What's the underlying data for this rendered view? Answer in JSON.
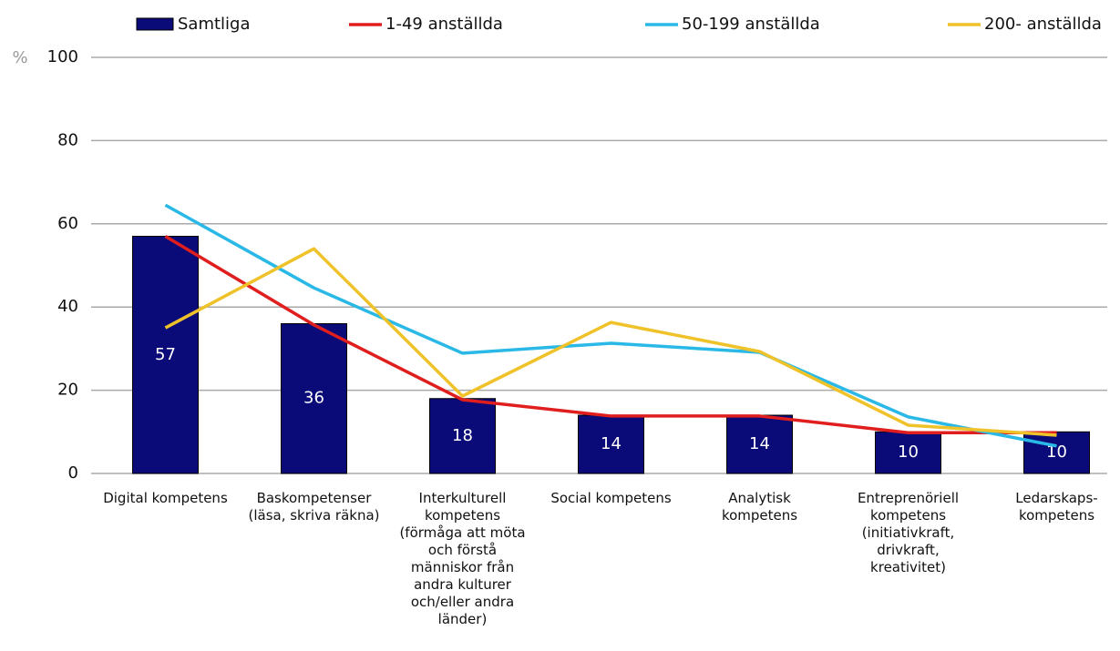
{
  "chart_data": {
    "type": "bar",
    "y_axis_label": "%",
    "categories": [
      "Digital kompetens",
      "Baskompetenser (läsa, skriva räkna)",
      "Interkulturell kompetens (förmåga att möta och förstå människor från andra kulturer och/eller andra länder)",
      "Social kompetens",
      "Analytisk kompetens",
      "Entreprenöriell kompetens (initiativkraft, drivkraft, kreativitet)",
      "Ledarskaps-kompetens"
    ],
    "series": [
      {
        "name": "Samtliga",
        "type": "bar",
        "color": "#0a0a78",
        "values": [
          57,
          36,
          18,
          14,
          14,
          10,
          10
        ]
      },
      {
        "name": "1-49 anställda",
        "type": "line",
        "color": "#e01e1e",
        "values": [
          57,
          35.7,
          17.7,
          13.8,
          13.8,
          9.8,
          9.8
        ]
      },
      {
        "name": "50-199 anställda",
        "type": "line",
        "color": "#2ab9e6",
        "values": [
          64.5,
          44.6,
          28.9,
          31.3,
          29.1,
          13.6,
          6.6
        ]
      },
      {
        "name": "200- anställda",
        "type": "line",
        "color": "#f0c22a",
        "values": [
          35,
          54,
          18.6,
          36.3,
          29.3,
          11.6,
          9.2
        ]
      }
    ],
    "ylim": [
      0,
      100
    ],
    "yticks": [
      0,
      20,
      40,
      60,
      80,
      100
    ],
    "grid": true,
    "legend": "top"
  }
}
